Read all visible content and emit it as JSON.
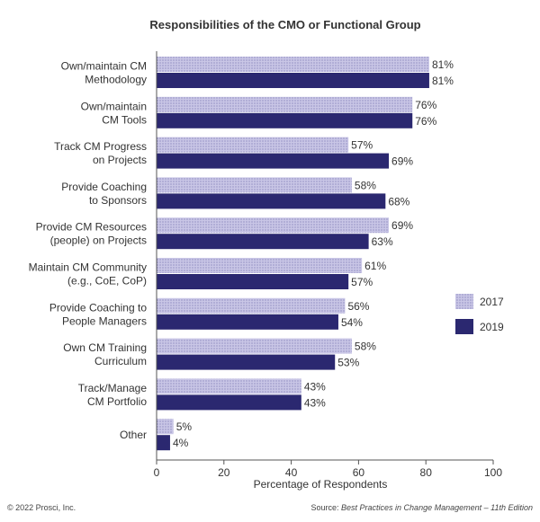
{
  "chart_data": {
    "type": "bar",
    "orientation": "horizontal",
    "title": "Responsibilities of the CMO or Functional Group",
    "xlabel": "Percentage of Respondents",
    "ylabel": "",
    "xlim": [
      0,
      100
    ],
    "xticks": [
      "0",
      "20",
      "40",
      "60",
      "80",
      "100"
    ],
    "categories": [
      [
        "Own/maintain CM",
        "Methodology"
      ],
      [
        "Own/maintain",
        "CM Tools"
      ],
      [
        "Track CM Progress",
        "on Projects"
      ],
      [
        "Provide Coaching",
        "to Sponsors"
      ],
      [
        "Provide CM Resources",
        "(people) on Projects"
      ],
      [
        "Maintain CM Community",
        "(e.g., CoE, CoP)"
      ],
      [
        "Provide Coaching to",
        "People Managers"
      ],
      [
        "Own CM Training",
        "Curriculum"
      ],
      [
        "Track/Manage",
        "CM Portfolio"
      ],
      [
        "Other"
      ]
    ],
    "series": [
      {
        "name": "2017",
        "color": "#b9b5dc",
        "pattern": "dotted",
        "values": [
          81,
          76,
          57,
          58,
          69,
          61,
          56,
          58,
          43,
          5
        ]
      },
      {
        "name": "2019",
        "color": "#2b2870",
        "pattern": "solid",
        "values": [
          81,
          76,
          69,
          68,
          63,
          57,
          54,
          53,
          43,
          4
        ]
      }
    ],
    "value_suffix": "%",
    "legend_position": "right",
    "grid": false
  },
  "footer": {
    "copyright": "© 2022 Prosci, Inc.",
    "source_prefix": "Source: ",
    "source_title": "Best Practices in Change Management – 11th Edition"
  }
}
